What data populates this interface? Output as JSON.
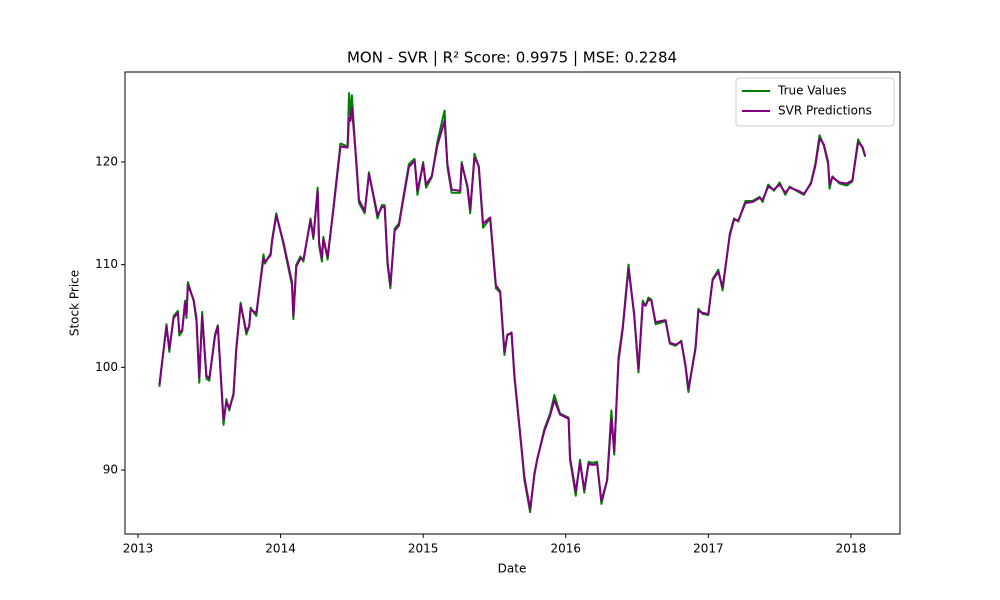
{
  "chart_data": {
    "type": "line",
    "title": "MON - SVR | R² Score: 0.9975 | MSE: 0.2284",
    "x_label": "Date",
    "y_label": "Stock Price",
    "xlim": [
      2012.909,
      2018.344
    ],
    "xticks": [
      2013,
      2014,
      2015,
      2016,
      2017,
      2018
    ],
    "ylim": [
      83.77,
      128.76
    ],
    "yticks": [
      90,
      100,
      110,
      120
    ],
    "legend": "upper right",
    "x": [
      2013.15,
      2013.2,
      2013.22,
      2013.25,
      2013.28,
      2013.29,
      2013.31,
      2013.33,
      2013.34,
      2013.35,
      2013.39,
      2013.41,
      2013.43,
      2013.45,
      2013.48,
      2013.5,
      2013.54,
      2013.56,
      2013.6,
      2013.62,
      2013.64,
      2013.67,
      2013.69,
      2013.72,
      2013.76,
      2013.78,
      2013.79,
      2013.83,
      2013.88,
      2013.89,
      2013.93,
      2013.94,
      2013.97,
      2014.02,
      2014.08,
      2014.09,
      2014.11,
      2014.14,
      2014.16,
      2014.21,
      2014.23,
      2014.26,
      2014.27,
      2014.29,
      2014.3,
      2014.33,
      2014.37,
      2014.42,
      2014.47,
      2014.48,
      2014.49,
      2014.5,
      2014.53,
      2014.55,
      2014.59,
      2014.62,
      2014.66,
      2014.68,
      2014.71,
      2014.73,
      2014.75,
      2014.77,
      2014.8,
      2014.83,
      2014.86,
      2014.9,
      2014.94,
      2014.96,
      2015.0,
      2015.02,
      2015.06,
      2015.1,
      2015.15,
      2015.17,
      2015.2,
      2015.26,
      2015.27,
      2015.31,
      2015.33,
      2015.36,
      2015.39,
      2015.42,
      2015.47,
      2015.51,
      2015.54,
      2015.57,
      2015.59,
      2015.62,
      2015.64,
      2015.69,
      2015.71,
      2015.75,
      2015.78,
      2015.8,
      2015.85,
      2015.89,
      2015.92,
      2015.96,
      2016.02,
      2016.03,
      2016.07,
      2016.1,
      2016.13,
      2016.16,
      2016.19,
      2016.22,
      2016.25,
      2016.29,
      2016.32,
      2016.34,
      2016.37,
      2016.4,
      2016.44,
      2016.48,
      2016.51,
      2016.54,
      2016.56,
      2016.58,
      2016.6,
      2016.63,
      2016.7,
      2016.73,
      2016.77,
      2016.81,
      2016.84,
      2016.86,
      2016.91,
      2016.93,
      2016.96,
      2017.0,
      2017.03,
      2017.07,
      2017.1,
      2017.15,
      2017.18,
      2017.21,
      2017.26,
      2017.31,
      2017.36,
      2017.38,
      2017.42,
      2017.46,
      2017.5,
      2017.54,
      2017.57,
      2017.63,
      2017.67,
      2017.72,
      2017.75,
      2017.78,
      2017.81,
      2017.84,
      2017.85,
      2017.87,
      2017.92,
      2017.97,
      2018.01,
      2018.05,
      2018.08,
      2018.1
    ],
    "series": [
      {
        "name": "True Values",
        "color": "#008000",
        "values": [
          98.1,
          104.2,
          101.5,
          105.0,
          105.5,
          103.1,
          103.5,
          106.5,
          104.8,
          108.3,
          106.5,
          104.5,
          98.5,
          105.4,
          98.9,
          98.7,
          103.2,
          104.1,
          94.4,
          96.9,
          95.8,
          97.5,
          102,
          106.3,
          103.2,
          104,
          105.8,
          105.0,
          111.0,
          110.1,
          111.1,
          112.4,
          115,
          112,
          108,
          104.7,
          110,
          110.8,
          110.3,
          114.5,
          112.5,
          117.5,
          111.9,
          110.3,
          112.7,
          110.5,
          115.5,
          121.8,
          121.5,
          126.7,
          124.5,
          126.5,
          120,
          116,
          115,
          119,
          116,
          114.5,
          115.8,
          115.8,
          110,
          107.7,
          113.5,
          114,
          116.5,
          119.8,
          120.3,
          116.8,
          120,
          117.5,
          118.5,
          122,
          125,
          119.5,
          117,
          117,
          120,
          117.5,
          115,
          120.8,
          119.5,
          113.6,
          114.5,
          107.7,
          107.3,
          101.2,
          103.2,
          103.3,
          99,
          92,
          89,
          85.9,
          89.7,
          91,
          94,
          95.5,
          97.3,
          95.5,
          95.1,
          91,
          87.5,
          91,
          87.8,
          90.8,
          90.7,
          90.8,
          86.7,
          89,
          95.8,
          91.5,
          101,
          104,
          110,
          105,
          99.5,
          106.5,
          106,
          106.8,
          106.6,
          104.2,
          104.5,
          102.3,
          102.1,
          102.6,
          100,
          97.6,
          102,
          105.7,
          105.2,
          105.1,
          108.6,
          109.5,
          107.5,
          113,
          114.5,
          114.2,
          116.2,
          116.2,
          116.6,
          116.1,
          117.8,
          117.2,
          118,
          116.8,
          117.6,
          117.1,
          116.8,
          118,
          119.8,
          122.6,
          121.6,
          119.8,
          117.4,
          118.6,
          117.9,
          117.7,
          118.1,
          122.2,
          121.4,
          120.5
        ]
      },
      {
        "name": "SVR Predictions",
        "color": "#800080",
        "values": [
          98.3,
          104.0,
          101.8,
          104.8,
          105.3,
          103.4,
          103.6,
          106.2,
          105.1,
          108.0,
          106.6,
          104.8,
          99.0,
          105.0,
          99.2,
          98.9,
          103.0,
          104.0,
          94.9,
          96.6,
          96.0,
          97.3,
          101.8,
          106.1,
          103.5,
          104.0,
          105.6,
          105.3,
          110.6,
          110.3,
          110.9,
          112.2,
          114.8,
          112.2,
          108.3,
          105.0,
          109.8,
          110.6,
          110.5,
          114.3,
          112.7,
          117.2,
          112.2,
          110.6,
          112.5,
          110.8,
          115.3,
          121.5,
          121.4,
          124.3,
          124.0,
          125.3,
          120.3,
          116.3,
          115.2,
          118.8,
          116.2,
          114.8,
          115.6,
          115.6,
          110.3,
          108.0,
          113.3,
          113.8,
          116.3,
          119.5,
          120.1,
          117.2,
          119.8,
          117.8,
          118.6,
          121.6,
          124.0,
          119.8,
          117.3,
          117.2,
          119.8,
          117.7,
          115.4,
          120.4,
          119.6,
          114.0,
          114.6,
          108.0,
          107.4,
          101.5,
          103.1,
          103.4,
          99.2,
          92.2,
          89.3,
          86.2,
          89.5,
          91.1,
          93.8,
          95.3,
          96.8,
          95.4,
          95.0,
          91.2,
          87.9,
          90.7,
          88.1,
          90.6,
          90.5,
          90.6,
          87.0,
          89.0,
          95.0,
          91.8,
          100.6,
          103.8,
          109.6,
          105.2,
          99.8,
          106.2,
          106.0,
          106.6,
          106.5,
          104.4,
          104.6,
          102.4,
          102.2,
          102.5,
          100.2,
          97.9,
          101.8,
          105.5,
          105.3,
          105.2,
          108.5,
          109.3,
          107.8,
          112.8,
          114.4,
          114.3,
          116.0,
          116.1,
          116.5,
          116.3,
          117.6,
          117.3,
          117.8,
          117.0,
          117.5,
          117.2,
          116.9,
          117.9,
          119.6,
          122.3,
          121.7,
          120.0,
          117.8,
          118.5,
          118.0,
          117.9,
          118.2,
          121.9,
          121.5,
          120.6
        ]
      }
    ]
  }
}
